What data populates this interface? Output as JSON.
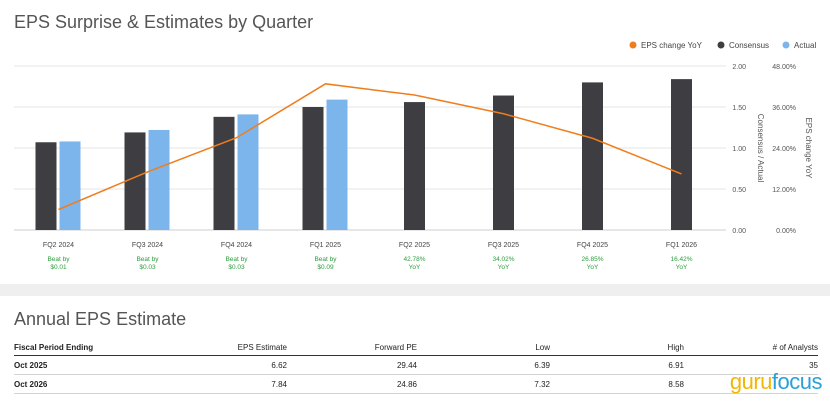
{
  "chart_title": "EPS Surprise & Estimates by Quarter",
  "legend": {
    "line": "EPS change YoY",
    "consensus": "Consensus",
    "actual": "Actual"
  },
  "colors": {
    "consensus": "#3e3e42",
    "actual": "#7cb5ec",
    "line": "#f07d1c",
    "annot": "#2a9d3b"
  },
  "chart_data": {
    "type": "bar",
    "categories": [
      "FQ2 2024",
      "FQ3 2024",
      "FQ4 2024",
      "FQ1 2025",
      "FQ2 2025",
      "FQ3 2025",
      "FQ4 2025",
      "FQ1 2026"
    ],
    "series": [
      {
        "name": "Consensus",
        "values": [
          1.07,
          1.19,
          1.38,
          1.5,
          1.56,
          1.64,
          1.8,
          1.84
        ]
      },
      {
        "name": "Actual",
        "values": [
          1.08,
          1.22,
          1.41,
          1.59,
          null,
          null,
          null,
          null
        ]
      },
      {
        "name": "EPS change YoY",
        "values": [
          6.0,
          17.0,
          27.0,
          42.78,
          39.5,
          34.02,
          26.85,
          16.42
        ]
      }
    ],
    "left_axis": {
      "label": "Consensus / Actual",
      "range": [
        0,
        2.0
      ],
      "ticks": [
        "0.00",
        "0.50",
        "1.00",
        "1.50",
        "2.00"
      ]
    },
    "right_axis": {
      "label": "EPS change YoY",
      "range": [
        0,
        48
      ],
      "ticks": [
        "0.00%",
        "12.00%",
        "24.00%",
        "36.00%",
        "48.00%"
      ]
    },
    "annotations": [
      [
        "Beat by",
        "$0.01"
      ],
      [
        "Beat by",
        "$0.03"
      ],
      [
        "Beat by",
        "$0.03"
      ],
      [
        "Beat by",
        "$0.09"
      ],
      [
        "42.78%",
        "YoY"
      ],
      [
        "34.02%",
        "YoY"
      ],
      [
        "26.85%",
        "YoY"
      ],
      [
        "16.42%",
        "YoY"
      ]
    ],
    "grid": true,
    "legend_position": "top-right"
  },
  "annual": {
    "title": "Annual EPS Estimate",
    "headers": [
      "Fiscal Period Ending",
      "EPS Estimate",
      "Forward PE",
      "Low",
      "High",
      "# of Analysts"
    ],
    "rows": [
      [
        "Oct 2025",
        "6.62",
        "29.44",
        "6.39",
        "6.91",
        "35"
      ],
      [
        "Oct 2026",
        "7.84",
        "24.86",
        "7.32",
        "8.58",
        ""
      ]
    ]
  },
  "logo": {
    "part1": "guru",
    "part2": "focus"
  }
}
